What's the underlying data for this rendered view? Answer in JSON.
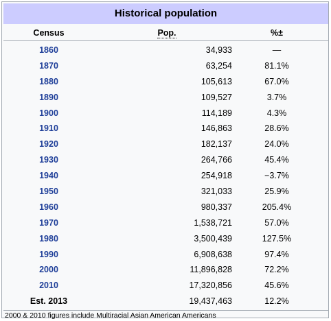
{
  "table": {
    "title": "Historical population",
    "headers": {
      "census": "Census",
      "pop": "Pop.",
      "pct": "%±"
    },
    "rows": [
      {
        "year": "1860",
        "pop": "34,933",
        "pct": "—"
      },
      {
        "year": "1870",
        "pop": "63,254",
        "pct": "81.1%"
      },
      {
        "year": "1880",
        "pop": "105,613",
        "pct": "67.0%"
      },
      {
        "year": "1890",
        "pop": "109,527",
        "pct": "3.7%"
      },
      {
        "year": "1900",
        "pop": "114,189",
        "pct": "4.3%"
      },
      {
        "year": "1910",
        "pop": "146,863",
        "pct": "28.6%"
      },
      {
        "year": "1920",
        "pop": "182,137",
        "pct": "24.0%"
      },
      {
        "year": "1930",
        "pop": "264,766",
        "pct": "45.4%"
      },
      {
        "year": "1940",
        "pop": "254,918",
        "pct": "−3.7%"
      },
      {
        "year": "1950",
        "pop": "321,033",
        "pct": "25.9%"
      },
      {
        "year": "1960",
        "pop": "980,337",
        "pct": "205.4%"
      },
      {
        "year": "1970",
        "pop": "1,538,721",
        "pct": "57.0%"
      },
      {
        "year": "1980",
        "pop": "3,500,439",
        "pct": "127.5%"
      },
      {
        "year": "1990",
        "pop": "6,908,638",
        "pct": "97.4%"
      },
      {
        "year": "2000",
        "pop": "11,896,828",
        "pct": "72.2%"
      },
      {
        "year": "2010",
        "pop": "17,320,856",
        "pct": "45.6%"
      },
      {
        "year": "Est. 2013",
        "pop": "19,437,463",
        "pct": "12.2%"
      }
    ],
    "note": "2000 & 2010 figures include Multiracial Asian American Americans",
    "colors": {
      "title_bg": "#ccccff",
      "link": "#1f3f99",
      "frame_bg": "#f8f9fa",
      "border": "#a2a9b1"
    }
  }
}
